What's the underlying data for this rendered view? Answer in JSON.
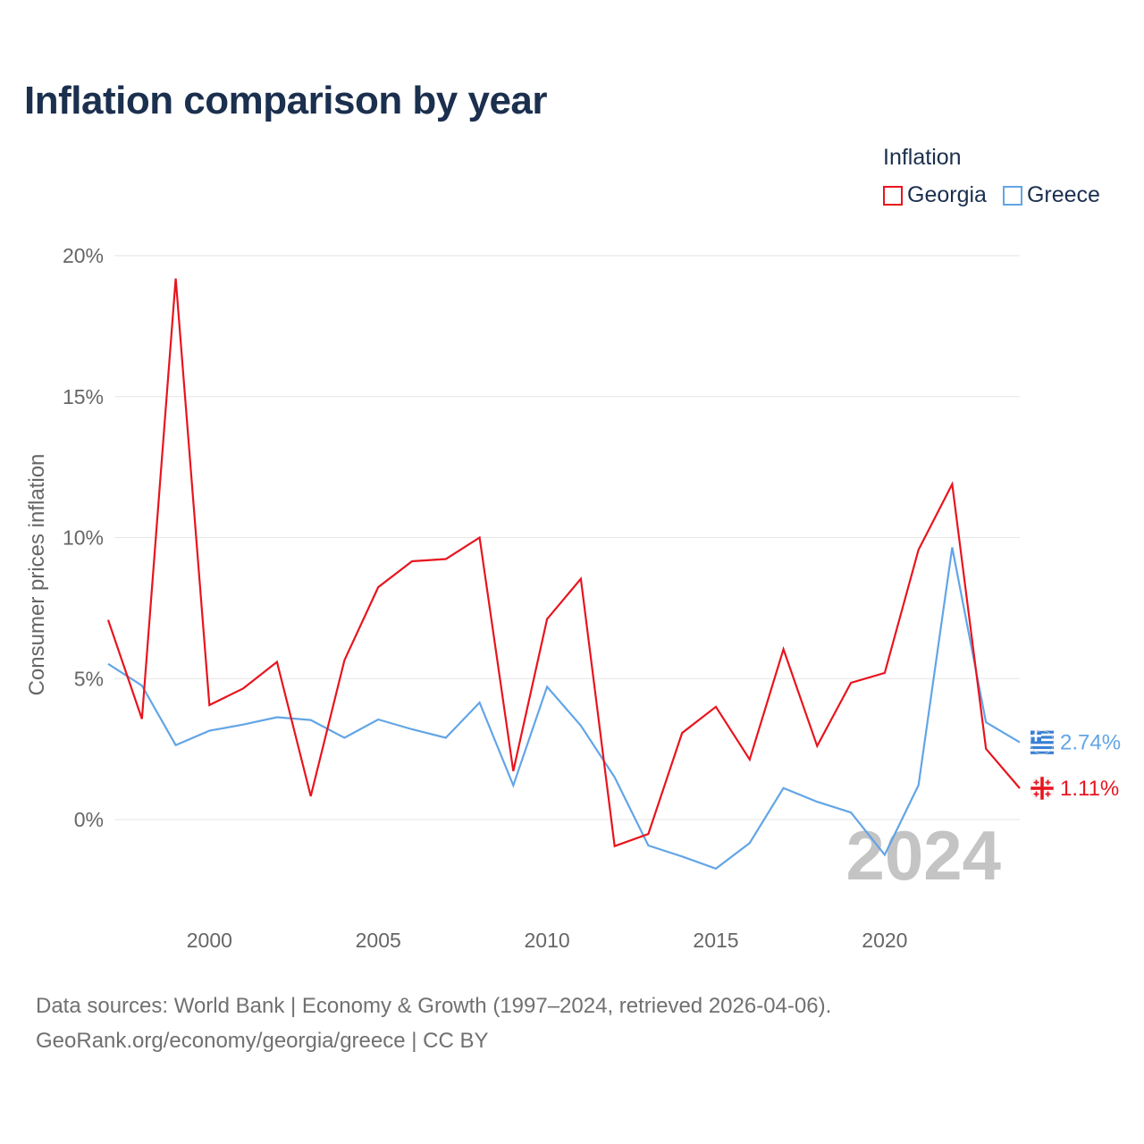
{
  "chart_data": {
    "type": "line",
    "title": "Inflation comparison by year",
    "xlabel": "",
    "ylabel": "Consumer prices inflation",
    "legend_title": "Inflation",
    "legend_position": "top-right",
    "x": [
      1997,
      1998,
      1999,
      2000,
      2001,
      2002,
      2003,
      2004,
      2005,
      2006,
      2007,
      2008,
      2009,
      2010,
      2011,
      2012,
      2013,
      2014,
      2015,
      2016,
      2017,
      2018,
      2019,
      2020,
      2021,
      2022,
      2023,
      2024
    ],
    "series": [
      {
        "name": "Georgia",
        "color": "#e8141e",
        "values": [
          7.08,
          3.57,
          19.19,
          4.06,
          4.65,
          5.59,
          0.83,
          5.65,
          8.24,
          9.16,
          9.24,
          10.0,
          1.72,
          7.11,
          8.54,
          -0.94,
          -0.51,
          3.07,
          4.0,
          2.13,
          6.04,
          2.61,
          4.85,
          5.2,
          9.57,
          11.9,
          2.51,
          1.11
        ],
        "end_label": "1.11%",
        "flag": "georgia-flag"
      },
      {
        "name": "Greece",
        "color": "#62a5e6",
        "values": [
          5.52,
          4.75,
          2.64,
          3.15,
          3.37,
          3.63,
          3.53,
          2.9,
          3.55,
          3.2,
          2.9,
          4.15,
          1.21,
          4.71,
          3.33,
          1.5,
          -0.92,
          -1.31,
          -1.74,
          -0.83,
          1.12,
          0.63,
          0.25,
          -1.25,
          1.22,
          9.65,
          3.45,
          2.74
        ],
        "end_label": "2.74%",
        "flag": "greece-flag"
      }
    ],
    "y_ticks": [
      {
        "value": 0,
        "label": "0%"
      },
      {
        "value": 5,
        "label": "5%"
      },
      {
        "value": 10,
        "label": "10%"
      },
      {
        "value": 15,
        "label": "15%"
      },
      {
        "value": 20,
        "label": "20%"
      }
    ],
    "x_ticks": [
      {
        "value": 2000,
        "label": "2000"
      },
      {
        "value": 2005,
        "label": "2005"
      },
      {
        "value": 2010,
        "label": "2010"
      },
      {
        "value": 2015,
        "label": "2015"
      },
      {
        "value": 2020,
        "label": "2020"
      }
    ],
    "xlim": [
      1997,
      2024
    ],
    "ylim": [
      -3,
      21
    ],
    "grid": true,
    "year_watermark": "2024"
  },
  "source": {
    "line1": "Data sources: World Bank | Economy & Growth (1997–2024, retrieved 2026-04-06).",
    "line2": "GeoRank.org/economy/georgia/greece | CC BY"
  }
}
